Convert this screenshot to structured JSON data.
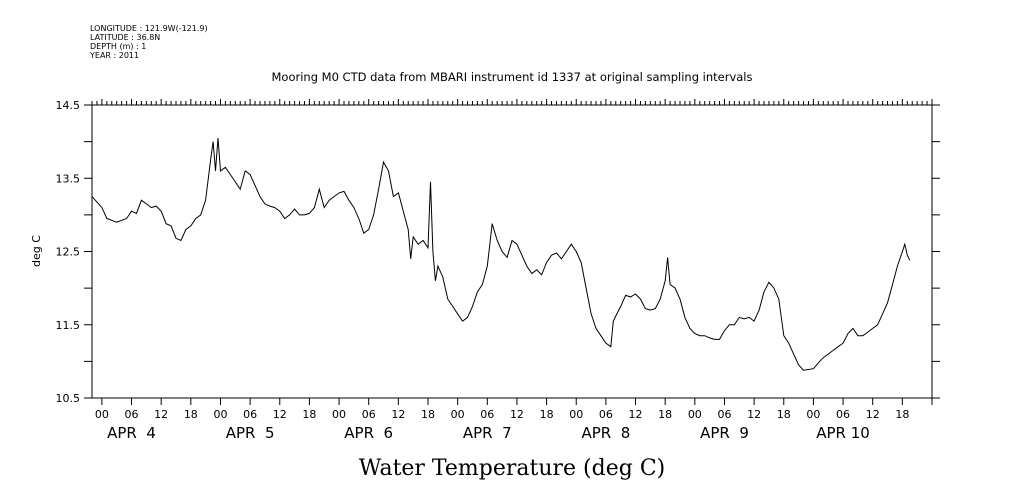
{
  "header": {
    "longitude": "LONGITUDE : 121.9W(-121.9)",
    "latitude": "LATITUDE : 36.8N",
    "depth": "DEPTH (m) : 1",
    "year": "YEAR : 2011"
  },
  "chart_data": {
    "type": "line",
    "title": "Mooring M0 CTD data from MBARI instrument id 1337 at original sampling intervals",
    "xlabel": "Water Temperature (deg C)",
    "ylabel": "deg C",
    "ylim": [
      10.5,
      14.5
    ],
    "yticks": [
      10.5,
      11.5,
      12.5,
      13.5,
      14.5
    ],
    "ytick_labels": [
      "10.5",
      "11.5",
      "12.5",
      "13.5",
      "14.5"
    ],
    "xlim": [
      "2011-04-03T22:00",
      "2011-04-11T00:00"
    ],
    "x_hour_labels": [
      "00",
      "06",
      "12",
      "18",
      "00",
      "06",
      "12",
      "18",
      "00",
      "06",
      "12",
      "18",
      "00",
      "06",
      "12",
      "18",
      "00",
      "06",
      "12",
      "18",
      "00",
      "06",
      "12",
      "18",
      "00",
      "06",
      "12",
      "18"
    ],
    "x_date_labels": [
      "APR  4",
      "APR  5",
      "APR  6",
      "APR  7",
      "APR  8",
      "APR  9",
      "APR 10"
    ],
    "grid": false,
    "series": [
      {
        "color": "#000000",
        "points": [
          [
            "2011-04-03T22:00",
            13.25
          ],
          [
            "2011-04-04T00:00",
            13.1
          ],
          [
            "2011-04-04T01:00",
            12.95
          ],
          [
            "2011-04-04T03:00",
            12.9
          ],
          [
            "2011-04-04T05:00",
            12.95
          ],
          [
            "2011-04-04T06:00",
            13.05
          ],
          [
            "2011-04-04T07:00",
            13.02
          ],
          [
            "2011-04-04T08:00",
            13.2
          ],
          [
            "2011-04-04T09:00",
            13.15
          ],
          [
            "2011-04-04T10:00",
            13.1
          ],
          [
            "2011-04-04T11:00",
            13.12
          ],
          [
            "2011-04-04T12:00",
            13.05
          ],
          [
            "2011-04-04T13:00",
            12.88
          ],
          [
            "2011-04-04T14:00",
            12.85
          ],
          [
            "2011-04-04T15:00",
            12.68
          ],
          [
            "2011-04-04T16:00",
            12.65
          ],
          [
            "2011-04-04T17:00",
            12.8
          ],
          [
            "2011-04-04T18:00",
            12.85
          ],
          [
            "2011-04-04T19:00",
            12.95
          ],
          [
            "2011-04-04T20:00",
            13.0
          ],
          [
            "2011-04-04T21:00",
            13.2
          ],
          [
            "2011-04-04T22:00",
            13.75
          ],
          [
            "2011-04-04T22:30",
            14.0
          ],
          [
            "2011-04-04T23:00",
            13.6
          ],
          [
            "2011-04-04T23:30",
            14.05
          ],
          [
            "2011-04-05T00:00",
            13.6
          ],
          [
            "2011-04-05T01:00",
            13.65
          ],
          [
            "2011-04-05T02:00",
            13.55
          ],
          [
            "2011-04-05T03:00",
            13.45
          ],
          [
            "2011-04-05T04:00",
            13.35
          ],
          [
            "2011-04-05T05:00",
            13.6
          ],
          [
            "2011-04-05T06:00",
            13.55
          ],
          [
            "2011-04-05T07:00",
            13.4
          ],
          [
            "2011-04-05T08:00",
            13.25
          ],
          [
            "2011-04-05T09:00",
            13.15
          ],
          [
            "2011-04-05T10:00",
            13.12
          ],
          [
            "2011-04-05T11:00",
            13.1
          ],
          [
            "2011-04-05T12:00",
            13.05
          ],
          [
            "2011-04-05T13:00",
            12.95
          ],
          [
            "2011-04-05T14:00",
            13.0
          ],
          [
            "2011-04-05T15:00",
            13.08
          ],
          [
            "2011-04-05T16:00",
            13.0
          ],
          [
            "2011-04-05T17:00",
            13.0
          ],
          [
            "2011-04-05T18:00",
            13.02
          ],
          [
            "2011-04-05T19:00",
            13.1
          ],
          [
            "2011-04-05T20:00",
            13.35
          ],
          [
            "2011-04-05T21:00",
            13.1
          ],
          [
            "2011-04-05T22:00",
            13.2
          ],
          [
            "2011-04-06T00:00",
            13.3
          ],
          [
            "2011-04-06T01:00",
            13.32
          ],
          [
            "2011-04-06T02:00",
            13.2
          ],
          [
            "2011-04-06T03:00",
            13.1
          ],
          [
            "2011-04-06T04:00",
            12.95
          ],
          [
            "2011-04-06T05:00",
            12.75
          ],
          [
            "2011-04-06T06:00",
            12.8
          ],
          [
            "2011-04-06T07:00",
            13.0
          ],
          [
            "2011-04-06T08:00",
            13.35
          ],
          [
            "2011-04-06T09:00",
            13.72
          ],
          [
            "2011-04-06T10:00",
            13.6
          ],
          [
            "2011-04-06T11:00",
            13.25
          ],
          [
            "2011-04-06T12:00",
            13.3
          ],
          [
            "2011-04-06T13:00",
            13.05
          ],
          [
            "2011-04-06T14:00",
            12.8
          ],
          [
            "2011-04-06T14:30",
            12.4
          ],
          [
            "2011-04-06T15:00",
            12.7
          ],
          [
            "2011-04-06T16:00",
            12.6
          ],
          [
            "2011-04-06T17:00",
            12.65
          ],
          [
            "2011-04-06T18:00",
            12.55
          ],
          [
            "2011-04-06T18:30",
            13.45
          ],
          [
            "2011-04-06T19:00",
            12.5
          ],
          [
            "2011-04-06T19:30",
            12.1
          ],
          [
            "2011-04-06T20:00",
            12.3
          ],
          [
            "2011-04-06T21:00",
            12.15
          ],
          [
            "2011-04-06T22:00",
            11.85
          ],
          [
            "2011-04-06T23:00",
            11.75
          ],
          [
            "2011-04-07T00:00",
            11.65
          ],
          [
            "2011-04-07T01:00",
            11.55
          ],
          [
            "2011-04-07T02:00",
            11.6
          ],
          [
            "2011-04-07T03:00",
            11.75
          ],
          [
            "2011-04-07T04:00",
            11.95
          ],
          [
            "2011-04-07T05:00",
            12.05
          ],
          [
            "2011-04-07T06:00",
            12.3
          ],
          [
            "2011-04-07T07:00",
            12.88
          ],
          [
            "2011-04-07T08:00",
            12.65
          ],
          [
            "2011-04-07T09:00",
            12.5
          ],
          [
            "2011-04-07T10:00",
            12.42
          ],
          [
            "2011-04-07T11:00",
            12.65
          ],
          [
            "2011-04-07T12:00",
            12.6
          ],
          [
            "2011-04-07T13:00",
            12.45
          ],
          [
            "2011-04-07T14:00",
            12.3
          ],
          [
            "2011-04-07T15:00",
            12.2
          ],
          [
            "2011-04-07T16:00",
            12.25
          ],
          [
            "2011-04-07T17:00",
            12.18
          ],
          [
            "2011-04-07T18:00",
            12.35
          ],
          [
            "2011-04-07T19:00",
            12.45
          ],
          [
            "2011-04-07T20:00",
            12.48
          ],
          [
            "2011-04-07T21:00",
            12.4
          ],
          [
            "2011-04-07T22:00",
            12.5
          ],
          [
            "2011-04-07T23:00",
            12.6
          ],
          [
            "2011-04-08T00:00",
            12.5
          ],
          [
            "2011-04-08T01:00",
            12.35
          ],
          [
            "2011-04-08T02:00",
            12.0
          ],
          [
            "2011-04-08T03:00",
            11.65
          ],
          [
            "2011-04-08T04:00",
            11.45
          ],
          [
            "2011-04-08T05:00",
            11.35
          ],
          [
            "2011-04-08T06:00",
            11.25
          ],
          [
            "2011-04-08T07:00",
            11.2
          ],
          [
            "2011-04-08T07:30",
            11.55
          ],
          [
            "2011-04-08T08:00",
            11.62
          ],
          [
            "2011-04-08T09:00",
            11.75
          ],
          [
            "2011-04-08T10:00",
            11.9
          ],
          [
            "2011-04-08T11:00",
            11.88
          ],
          [
            "2011-04-08T12:00",
            11.92
          ],
          [
            "2011-04-08T13:00",
            11.85
          ],
          [
            "2011-04-08T14:00",
            11.72
          ],
          [
            "2011-04-08T15:00",
            11.7
          ],
          [
            "2011-04-08T16:00",
            11.72
          ],
          [
            "2011-04-08T17:00",
            11.85
          ],
          [
            "2011-04-08T18:00",
            12.1
          ],
          [
            "2011-04-08T18:30",
            12.42
          ],
          [
            "2011-04-08T19:00",
            12.05
          ],
          [
            "2011-04-08T20:00",
            12.0
          ],
          [
            "2011-04-08T21:00",
            11.85
          ],
          [
            "2011-04-08T22:00",
            11.6
          ],
          [
            "2011-04-08T23:00",
            11.45
          ],
          [
            "2011-04-09T00:00",
            11.38
          ],
          [
            "2011-04-09T01:00",
            11.35
          ],
          [
            "2011-04-09T02:00",
            11.35
          ],
          [
            "2011-04-09T03:00",
            11.32
          ],
          [
            "2011-04-09T04:00",
            11.3
          ],
          [
            "2011-04-09T05:00",
            11.3
          ],
          [
            "2011-04-09T06:00",
            11.42
          ],
          [
            "2011-04-09T07:00",
            11.5
          ],
          [
            "2011-04-09T08:00",
            11.5
          ],
          [
            "2011-04-09T09:00",
            11.6
          ],
          [
            "2011-04-09T10:00",
            11.58
          ],
          [
            "2011-04-09T11:00",
            11.6
          ],
          [
            "2011-04-09T12:00",
            11.55
          ],
          [
            "2011-04-09T13:00",
            11.7
          ],
          [
            "2011-04-09T14:00",
            11.95
          ],
          [
            "2011-04-09T15:00",
            12.08
          ],
          [
            "2011-04-09T16:00",
            12.0
          ],
          [
            "2011-04-09T17:00",
            11.85
          ],
          [
            "2011-04-09T18:00",
            11.35
          ],
          [
            "2011-04-09T19:00",
            11.25
          ],
          [
            "2011-04-09T20:00",
            11.1
          ],
          [
            "2011-04-09T21:00",
            10.95
          ],
          [
            "2011-04-09T22:00",
            10.88
          ],
          [
            "2011-04-10T00:00",
            10.9
          ],
          [
            "2011-04-10T01:00",
            10.98
          ],
          [
            "2011-04-10T02:00",
            11.05
          ],
          [
            "2011-04-10T03:00",
            11.1
          ],
          [
            "2011-04-10T04:00",
            11.15
          ],
          [
            "2011-04-10T05:00",
            11.2
          ],
          [
            "2011-04-10T06:00",
            11.25
          ],
          [
            "2011-04-10T07:00",
            11.38
          ],
          [
            "2011-04-10T08:00",
            11.45
          ],
          [
            "2011-04-10T09:00",
            11.35
          ],
          [
            "2011-04-10T10:00",
            11.35
          ],
          [
            "2011-04-10T11:00",
            11.4
          ],
          [
            "2011-04-10T12:00",
            11.45
          ],
          [
            "2011-04-10T13:00",
            11.5
          ],
          [
            "2011-04-10T14:00",
            11.65
          ],
          [
            "2011-04-10T15:00",
            11.8
          ],
          [
            "2011-04-10T16:00",
            12.05
          ],
          [
            "2011-04-10T17:00",
            12.3
          ],
          [
            "2011-04-10T18:00",
            12.5
          ],
          [
            "2011-04-10T18:30",
            12.6
          ],
          [
            "2011-04-10T19:00",
            12.45
          ],
          [
            "2011-04-10T19:30",
            12.38
          ]
        ]
      }
    ]
  }
}
